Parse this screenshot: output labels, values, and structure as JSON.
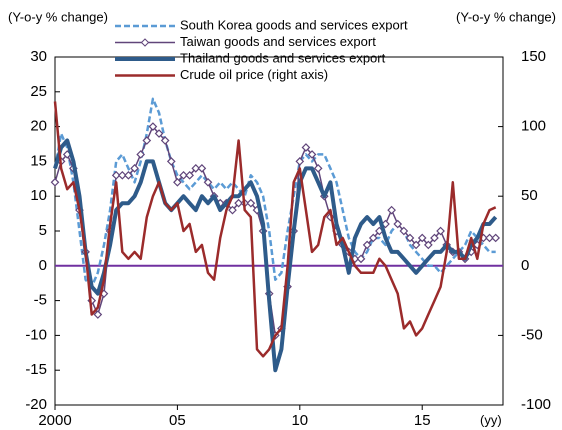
{
  "chart_data": {
    "type": "line",
    "y_label": "(Y-o-y % change)",
    "y2_label": "(Y-o-y % change)",
    "x_label": "(yy)",
    "x": [
      2000,
      2000.25,
      2000.5,
      2000.75,
      2001,
      2001.25,
      2001.5,
      2001.75,
      2002,
      2002.25,
      2002.5,
      2002.75,
      2003,
      2003.25,
      2003.5,
      2003.75,
      2004,
      2004.25,
      2004.5,
      2004.75,
      2005,
      2005.25,
      2005.5,
      2005.75,
      2006,
      2006.25,
      2006.5,
      2006.75,
      2007,
      2007.25,
      2007.5,
      2007.75,
      2008,
      2008.25,
      2008.5,
      2008.75,
      2009,
      2009.25,
      2009.5,
      2009.75,
      2010,
      2010.25,
      2010.5,
      2010.75,
      2011,
      2011.25,
      2011.5,
      2011.75,
      2012,
      2012.25,
      2012.5,
      2012.75,
      2013,
      2013.25,
      2013.5,
      2013.75,
      2014,
      2014.25,
      2014.5,
      2014.75,
      2015,
      2015.25,
      2015.5,
      2015.75,
      2016,
      2016.25,
      2016.5,
      2016.75,
      2017,
      2017.25,
      2017.5,
      2017.75,
      2018
    ],
    "xlim": [
      2000,
      2018.3
    ],
    "xticks": [
      2000,
      {
        "value": 2005,
        "label": "05"
      },
      {
        "value": 2010,
        "label": "10"
      },
      {
        "value": 2015,
        "label": "15"
      }
    ],
    "ylim": [
      -20,
      30
    ],
    "yticks": [
      -20,
      -15,
      -10,
      -5,
      0,
      5,
      10,
      15,
      20,
      25,
      30
    ],
    "y2lim": [
      -100,
      150
    ],
    "y2ticks": [
      -100,
      -50,
      0,
      50,
      100,
      150
    ],
    "zero_line_color": "#7030a0",
    "series": [
      {
        "name": "South Korea goods and services export",
        "color": "#5b9bd5",
        "dash": true,
        "width": 2.5,
        "values": [
          14,
          19,
          17,
          12,
          5,
          -2,
          -3,
          -1,
          3,
          8,
          15,
          16,
          14,
          12,
          15,
          19,
          24,
          22,
          18,
          15,
          13,
          12,
          11,
          12,
          13,
          12,
          11,
          12,
          11,
          12,
          11,
          10,
          13,
          12,
          10,
          5,
          -2,
          -1,
          5,
          10,
          15,
          16,
          15,
          16,
          16,
          14,
          12,
          8,
          4,
          2,
          1,
          2,
          4,
          4,
          3,
          5,
          6,
          5,
          3,
          2,
          1,
          0,
          0,
          -1,
          0,
          1,
          2,
          3,
          5,
          4,
          3,
          2,
          2
        ]
      },
      {
        "name": "Taiwan goods and services export",
        "color": "#60457a",
        "marker": "diamond",
        "width": 1.5,
        "values": [
          12,
          15,
          16,
          14,
          8,
          2,
          -5,
          -7,
          -4,
          5,
          13,
          13,
          13,
          14,
          16,
          18,
          20,
          19,
          18,
          15,
          12,
          13,
          13,
          14,
          14,
          12,
          10,
          9,
          9,
          8,
          9,
          9,
          9,
          8,
          5,
          -4,
          -10,
          -9,
          -3,
          5,
          15,
          17,
          16,
          14,
          10,
          7,
          5,
          3,
          2,
          1,
          1,
          3,
          4,
          5,
          6,
          8,
          6,
          5,
          4,
          3,
          4,
          3,
          4,
          5,
          3,
          2,
          2,
          1,
          2,
          3,
          4,
          4,
          4
        ]
      },
      {
        "name": "Thailand goods and services export",
        "color": "#2e5b8a",
        "width": 4,
        "values": [
          14,
          17,
          18,
          15,
          10,
          2,
          -3,
          -4,
          -1,
          3,
          8,
          9,
          9,
          10,
          12,
          15,
          15,
          12,
          9,
          8,
          9,
          10,
          9,
          8,
          10,
          9,
          10,
          8,
          9,
          10,
          10,
          11,
          12,
          10,
          6,
          -5,
          -15,
          -12,
          -3,
          5,
          12,
          14,
          14,
          12,
          10,
          12,
          6,
          3,
          -1,
          4,
          6,
          7,
          6,
          7,
          4,
          2,
          2,
          1,
          0,
          -1,
          0,
          1,
          2,
          2,
          3,
          2,
          2,
          1,
          3,
          4,
          6,
          6,
          7
        ]
      },
      {
        "name": "Crude oil price (right axis)",
        "color": "#9b2b2b",
        "width": 2.5,
        "axis": "y2",
        "values": [
          118,
          70,
          55,
          60,
          40,
          10,
          -35,
          -30,
          -10,
          30,
          60,
          10,
          5,
          10,
          5,
          35,
          50,
          60,
          45,
          40,
          45,
          25,
          30,
          10,
          15,
          -5,
          -10,
          20,
          40,
          50,
          90,
          40,
          35,
          -60,
          -65,
          -60,
          -50,
          -45,
          0,
          60,
          70,
          40,
          10,
          15,
          35,
          40,
          15,
          20,
          10,
          0,
          -5,
          -5,
          -5,
          5,
          0,
          -10,
          -20,
          -45,
          -40,
          -50,
          -45,
          -35,
          -25,
          -15,
          10,
          60,
          5,
          5,
          20,
          5,
          30,
          40,
          42
        ]
      }
    ]
  }
}
